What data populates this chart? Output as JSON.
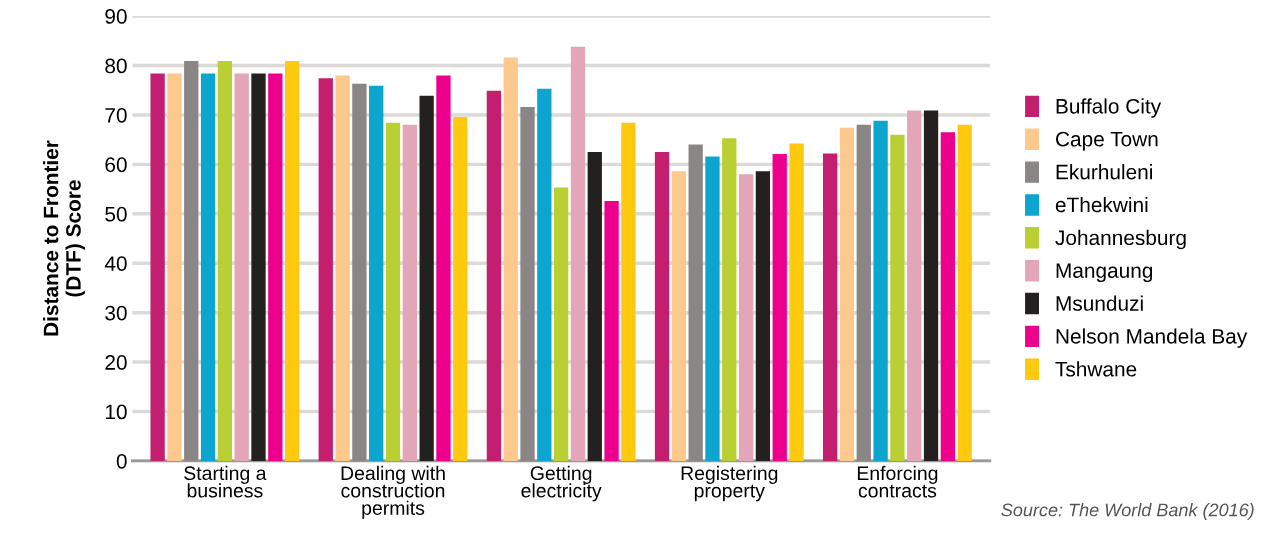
{
  "chart_data": {
    "type": "bar",
    "ylabel": "Distance to Frontier\n(DTF) Score",
    "categories": [
      "Starting a\nbusiness",
      "Dealing with\nconstruction\npermits",
      "Getting\nelectricity",
      "Registering\nproperty",
      "Enforcing\ncontracts"
    ],
    "series": [
      {
        "name": "Buffalo City",
        "color": "#c41e6f",
        "values": [
          78.4,
          77.4,
          74.9,
          62.5,
          62.2
        ]
      },
      {
        "name": "Cape Town",
        "color": "#fec98c",
        "values": [
          78.4,
          78.0,
          81.6,
          58.6,
          67.4
        ]
      },
      {
        "name": "Ekurhuleni",
        "color": "#8a8685",
        "values": [
          80.9,
          76.3,
          71.6,
          64.0,
          68.0
        ]
      },
      {
        "name": "eThekwini",
        "color": "#0ba5cf",
        "values": [
          78.4,
          75.9,
          75.3,
          61.6,
          68.8
        ]
      },
      {
        "name": "Johannesburg",
        "color": "#bacf33",
        "values": [
          80.9,
          68.4,
          55.3,
          65.3,
          66.0
        ]
      },
      {
        "name": "Mangaung",
        "color": "#e2a6b8",
        "values": [
          78.4,
          68.0,
          83.8,
          58.0,
          70.9
        ]
      },
      {
        "name": "Msunduzi",
        "color": "#232020",
        "values": [
          78.4,
          73.9,
          62.5,
          58.6,
          70.9
        ]
      },
      {
        "name": "Nelson Mandela Bay",
        "color": "#ec008c",
        "values": [
          78.4,
          78.0,
          52.6,
          62.1,
          66.5
        ]
      },
      {
        "name": "Tshwane",
        "color": "#fec90f",
        "values": [
          80.9,
          69.6,
          68.4,
          64.2,
          68.0
        ]
      }
    ],
    "ylim": [
      0,
      90
    ],
    "yticks": [
      0,
      10,
      20,
      30,
      40,
      50,
      60,
      70,
      80,
      90
    ],
    "grid": "y",
    "legend": "right",
    "annotations": [
      "Source: The World Bank (2016)"
    ]
  }
}
